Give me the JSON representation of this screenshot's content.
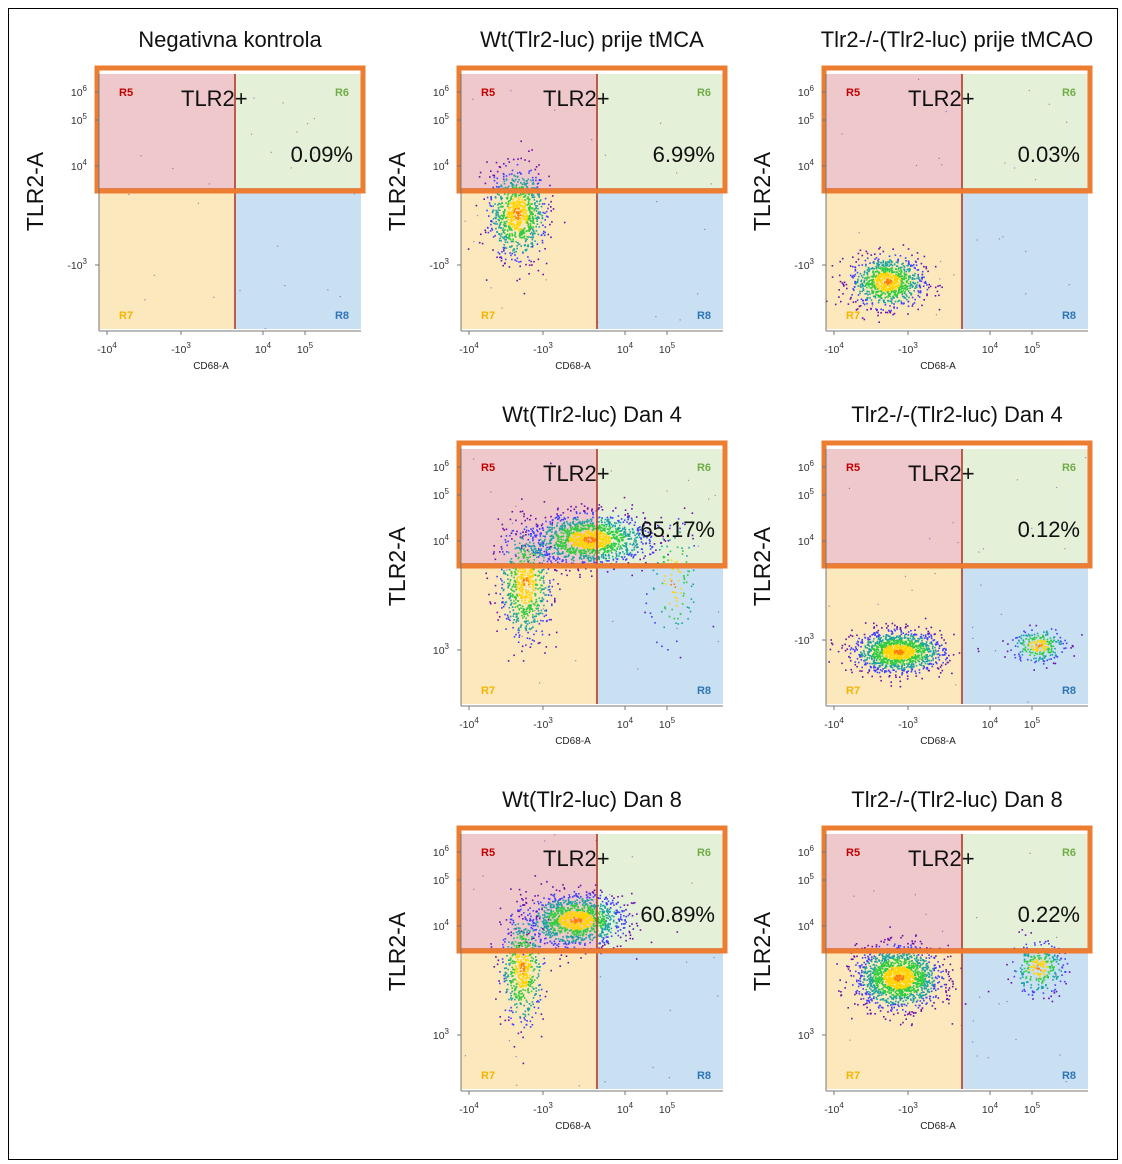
{
  "colors": {
    "r5_fill": "#efc8cc",
    "r6_fill": "#e4f1d8",
    "r7_fill": "#fbe8bd",
    "r8_fill": "#c9dff2",
    "gate_line": "#b33a2b",
    "highlight_box": "#ed7d31",
    "r5_label": "#c00000",
    "r6_label": "#70ad47",
    "r7_label": "#f4b400",
    "r8_label": "#2e75b6",
    "dot_colors": [
      "#6a0dad",
      "#3f3fff",
      "#1aa3a3",
      "#2ecc40",
      "#ffd400",
      "#ff7f00"
    ]
  },
  "chart_data": [
    {
      "type": "scatter",
      "title": "Negativna kontrola",
      "xlabel": "CD68-A",
      "ylabel": "TLR2-A",
      "x_ticks": [
        "-10^4",
        "-10^3",
        "10^4",
        "10^5"
      ],
      "y_ticks": [
        "10^6",
        "10^5",
        "10^4",
        "-10^3"
      ],
      "regions": [
        "R5",
        "R6",
        "R7",
        "R8"
      ],
      "gate_label": "TLR2+",
      "tlr2_positive_percent": "0.09%",
      "clusters": []
    },
    {
      "type": "scatter",
      "title": "Wt(Tlr2-luc) prije tMCA",
      "xlabel": "CD68-A",
      "ylabel": "TLR2-A",
      "x_ticks": [
        "-10^4",
        "-10^3",
        "10^4",
        "10^5"
      ],
      "y_ticks": [
        "10^6",
        "10^5",
        "10^4",
        "-10^3"
      ],
      "regions": [
        "R5",
        "R6",
        "R7",
        "R8"
      ],
      "gate_label": "TLR2+",
      "tlr2_positive_percent": "6.99%",
      "clusters": [
        {
          "cx": -800,
          "cy": 1500,
          "sx": 0.11,
          "sy": 0.18,
          "n": 900
        }
      ]
    },
    {
      "type": "scatter",
      "title": "Tlr2-/-(Tlr2-luc)  prije tMCAO",
      "xlabel": "CD68-A",
      "ylabel": "TLR2-A",
      "x_ticks": [
        "-10^4",
        "-10^3",
        "10^4",
        "10^5"
      ],
      "y_ticks": [
        "10^6",
        "10^5",
        "10^4",
        "-10^3"
      ],
      "regions": [
        "R5",
        "R6",
        "R7",
        "R8"
      ],
      "gate_label": "TLR2+",
      "tlr2_positive_percent": "0.03%",
      "clusters": [
        {
          "cx": -600,
          "cy": -300,
          "sx": 0.14,
          "sy": 0.1,
          "n": 900
        }
      ]
    },
    {
      "type": "scatter",
      "title": "Wt(Tlr2-luc)  Dan 4",
      "xlabel": "CD68-A",
      "ylabel": "TLR2-A",
      "x_ticks": [
        "-10^4",
        "-10^3",
        "10^4",
        "10^5"
      ],
      "y_ticks": [
        "10^6",
        "10^5",
        "10^4",
        "10^3"
      ],
      "regions": [
        "R5",
        "R6",
        "R7",
        "R8"
      ],
      "gate_label": "TLR2+",
      "tlr2_positive_percent": "65.17%",
      "clusters": [
        {
          "cx": 500,
          "cy": 20000,
          "sx": 0.22,
          "sy": 0.1,
          "n": 1400
        },
        {
          "cx": -500,
          "cy": 2000,
          "sx": 0.1,
          "sy": 0.22,
          "n": 700
        },
        {
          "cx": 30000,
          "cy": 2000,
          "sx": 0.1,
          "sy": 0.25,
          "n": 120
        }
      ]
    },
    {
      "type": "scatter",
      "title": "Tlr2-/-(Tlr2-luc)  Dan 4",
      "xlabel": "CD68-A",
      "ylabel": "TLR2-A",
      "x_ticks": [
        "-10^4",
        "-10^3",
        "10^4",
        "10^5"
      ],
      "y_ticks": [
        "10^6",
        "10^5",
        "10^4",
        "-10^3"
      ],
      "regions": [
        "R5",
        "R6",
        "R7",
        "R8"
      ],
      "gate_label": "TLR2+",
      "tlr2_positive_percent": "0.12%",
      "clusters": [
        {
          "cx": -300,
          "cy": -200,
          "sx": 0.17,
          "sy": 0.08,
          "n": 1300
        },
        {
          "cx": 30000,
          "cy": -100,
          "sx": 0.1,
          "sy": 0.07,
          "n": 250
        }
      ]
    },
    {
      "type": "scatter",
      "title": "Wt(Tlr2-luc)  Dan 8",
      "xlabel": "CD68-A",
      "ylabel": "TLR2-A",
      "x_ticks": [
        "-10^4",
        "-10^3",
        "10^4",
        "10^5"
      ],
      "y_ticks": [
        "10^6",
        "10^5",
        "10^4",
        "10^3"
      ],
      "regions": [
        "R5",
        "R6",
        "R7",
        "R8"
      ],
      "gate_label": "TLR2+",
      "tlr2_positive_percent": "60.89%",
      "clusters": [
        {
          "cx": 200,
          "cy": 25000,
          "sx": 0.18,
          "sy": 0.1,
          "n": 1300
        },
        {
          "cx": -600,
          "cy": 2000,
          "sx": 0.08,
          "sy": 0.22,
          "n": 600
        }
      ]
    },
    {
      "type": "scatter",
      "title": "Tlr2-/-(Tlr2-luc)  Dan 8",
      "xlabel": "CD68-A",
      "ylabel": "TLR2-A",
      "x_ticks": [
        "-10^4",
        "-10^3",
        "10^4",
        "10^5"
      ],
      "y_ticks": [
        "10^6",
        "10^5",
        "10^4",
        "10^3"
      ],
      "regions": [
        "R5",
        "R6",
        "R7",
        "R8"
      ],
      "gate_label": "TLR2+",
      "tlr2_positive_percent": "0.22%",
      "clusters": [
        {
          "cx": -300,
          "cy": 1200,
          "sx": 0.16,
          "sy": 0.12,
          "n": 1600
        },
        {
          "cx": 30000,
          "cy": 2000,
          "sx": 0.1,
          "sy": 0.1,
          "n": 300
        }
      ]
    }
  ]
}
